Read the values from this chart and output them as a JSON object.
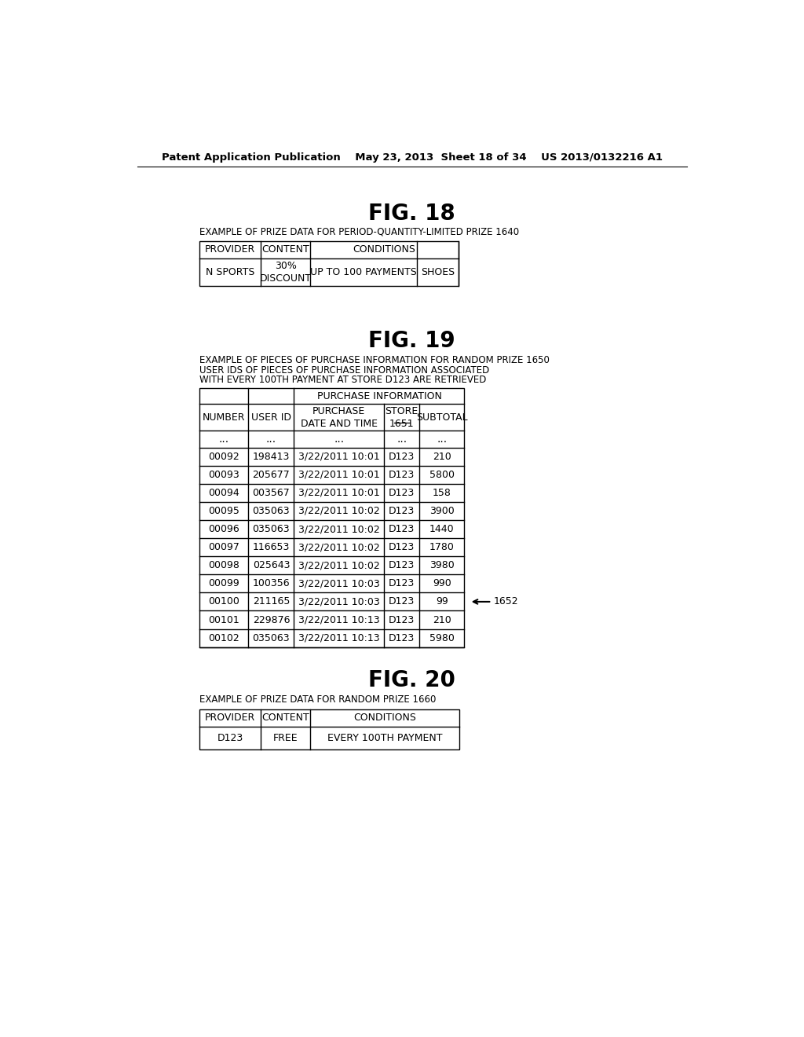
{
  "bg_color": "#ffffff",
  "header_text": "Patent Application Publication    May 23, 2013  Sheet 18 of 34    US 2013/0132216 A1",
  "fig18_title": "FIG. 18",
  "fig18_subtitle": "EXAMPLE OF PRIZE DATA FOR PERIOD-QUANTITY-LIMITED PRIZE 1640",
  "fig19_title": "FIG. 19",
  "fig19_subtitle1": "EXAMPLE OF PIECES OF PURCHASE INFORMATION FOR RANDOM PRIZE 1650",
  "fig19_subtitle2a": "USER IDS OF PIECES OF PURCHASE INFORMATION ASSOCIATED",
  "fig19_subtitle2b": "WITH EVERY 100TH PAYMENT AT STORE D123 ARE RETRIEVED",
  "fig19_rows": [
    [
      "00092",
      "198413",
      "3/22/2011 10:01",
      "D123",
      "210"
    ],
    [
      "00093",
      "205677",
      "3/22/2011 10:01",
      "D123",
      "5800"
    ],
    [
      "00094",
      "003567",
      "3/22/2011 10:01",
      "D123",
      "158"
    ],
    [
      "00095",
      "035063",
      "3/22/2011 10:02",
      "D123",
      "3900"
    ],
    [
      "00096",
      "035063",
      "3/22/2011 10:02",
      "D123",
      "1440"
    ],
    [
      "00097",
      "116653",
      "3/22/2011 10:02",
      "D123",
      "1780"
    ],
    [
      "00098",
      "025643",
      "3/22/2011 10:02",
      "D123",
      "3980"
    ],
    [
      "00099",
      "100356",
      "3/22/2011 10:03",
      "D123",
      "990"
    ],
    [
      "00100",
      "211165",
      "3/22/2011 10:03",
      "D123",
      "99"
    ],
    [
      "00101",
      "229876",
      "3/22/2011 10:13",
      "D123",
      "210"
    ],
    [
      "00102",
      "035063",
      "3/22/2011 10:13",
      "D123",
      "5980"
    ]
  ],
  "arrow_row_idx": 8,
  "fig20_title": "FIG. 20",
  "fig20_subtitle": "EXAMPLE OF PRIZE DATA FOR RANDOM PRIZE 1660"
}
